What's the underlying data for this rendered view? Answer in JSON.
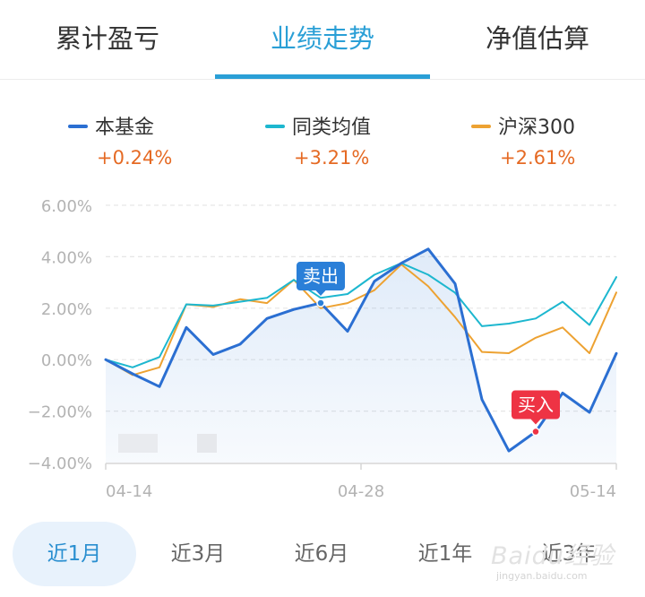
{
  "tabs": [
    {
      "label": "累计盈亏",
      "active": false
    },
    {
      "label": "业绩走势",
      "active": true
    },
    {
      "label": "净值估算",
      "active": false
    }
  ],
  "legend": [
    {
      "label": "本基金",
      "value": "+0.24%",
      "color": "#2b6fd2"
    },
    {
      "label": "同类均值",
      "value": "+3.21%",
      "color": "#1db7cf"
    },
    {
      "label": "沪深300",
      "value": "+2.61%",
      "color": "#eda232"
    }
  ],
  "chart_data": {
    "type": "line",
    "ylim": [
      -4,
      6
    ],
    "y_ticks": [
      6,
      4,
      2,
      0,
      -2,
      -4
    ],
    "y_tick_labels": [
      "6.00%",
      "4.00%",
      "2.00%",
      "0.00%",
      "−2.00%",
      "−4.00%"
    ],
    "x_tick_labels": [
      "04-14",
      "04-28",
      "05-14"
    ],
    "x_tick_index": [
      0,
      11,
      22
    ],
    "grid": true,
    "series": [
      {
        "name": "本基金",
        "color": "#2b6fd2",
        "fill": true,
        "values": [
          0,
          -0.55,
          -1.05,
          1.25,
          0.2,
          0.6,
          1.6,
          1.95,
          2.2,
          1.1,
          3.05,
          3.75,
          4.3,
          2.95,
          -1.55,
          -3.55,
          -2.8,
          -1.3,
          -2.05,
          0.24
        ]
      },
      {
        "name": "同类均值",
        "color": "#1db7cf",
        "values": [
          0,
          -0.3,
          0.1,
          2.15,
          2.1,
          2.25,
          2.4,
          3.1,
          2.4,
          2.55,
          3.3,
          3.75,
          3.3,
          2.6,
          1.3,
          1.4,
          1.6,
          2.25,
          1.35,
          3.21
        ]
      },
      {
        "name": "沪深300",
        "color": "#eda232",
        "values": [
          0,
          -0.6,
          -0.3,
          2.15,
          2.05,
          2.35,
          2.2,
          3.1,
          2.0,
          2.2,
          2.7,
          3.7,
          2.85,
          1.65,
          0.3,
          0.25,
          0.85,
          1.25,
          0.25,
          2.61
        ]
      }
    ],
    "x_index": [
      0,
      1,
      2,
      3,
      4,
      5,
      6,
      7,
      8,
      9,
      10,
      11,
      12,
      13,
      14,
      15,
      16,
      17,
      18,
      19
    ],
    "markers": [
      {
        "label": "卖出",
        "series": 0,
        "index": 8,
        "color": "#2a7fd8"
      },
      {
        "label": "买入",
        "series": 0,
        "index": 16,
        "color": "#ee3344"
      }
    ]
  },
  "periods": [
    {
      "label": "近1月",
      "active": true
    },
    {
      "label": "近3月",
      "active": false
    },
    {
      "label": "近6月",
      "active": false
    },
    {
      "label": "近1年",
      "active": false
    },
    {
      "label": "近3年",
      "active": false
    }
  ],
  "watermark": {
    "main": "Baidu经验",
    "sub": "jingyan.baidu.com"
  }
}
